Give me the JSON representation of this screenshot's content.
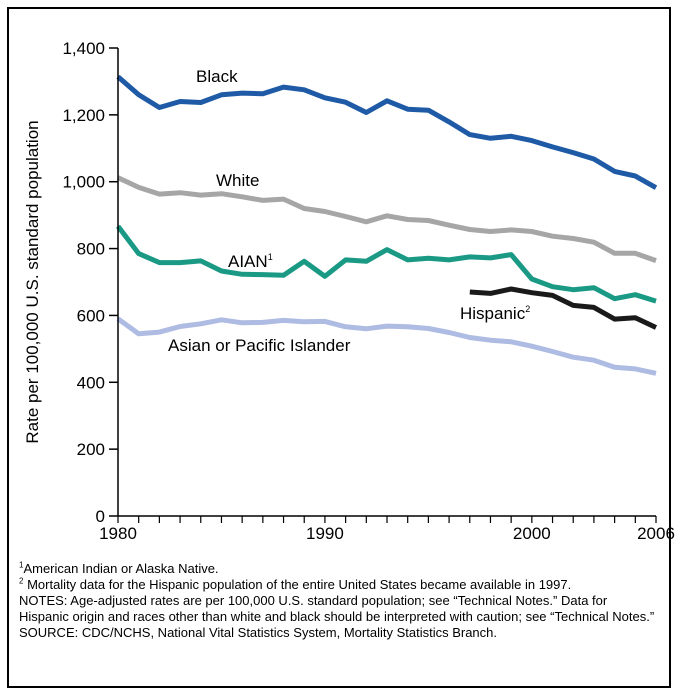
{
  "chart_data": {
    "type": "line",
    "title": "",
    "ylabel": "Rate per 100,000 U.S. standard population",
    "xlabel": "",
    "xlim": [
      1980,
      2006
    ],
    "ylim": [
      0,
      1400
    ],
    "x_ticks": [
      "1980",
      "1990",
      "2000",
      "2006"
    ],
    "y_ticks": [
      "0",
      "200",
      "400",
      "600",
      "800",
      "1,000",
      "1,200",
      "1,400"
    ],
    "grid": false,
    "series": [
      {
        "name": "Black",
        "sup": "",
        "color": "#1f5aa6",
        "x": [
          1980,
          1981,
          1982,
          1983,
          1984,
          1985,
          1986,
          1987,
          1988,
          1989,
          1990,
          1991,
          1992,
          1993,
          1994,
          1995,
          1996,
          1997,
          1998,
          1999,
          2000,
          2001,
          2002,
          2003,
          2004,
          2005,
          2006
        ],
        "y": [
          1314,
          1260,
          1222,
          1240,
          1237,
          1260,
          1265,
          1263,
          1283,
          1275,
          1251,
          1238,
          1207,
          1242,
          1217,
          1214,
          1179,
          1141,
          1130,
          1136,
          1123,
          1104,
          1087,
          1068,
          1031,
          1017,
          982
        ]
      },
      {
        "name": "White",
        "sup": "",
        "color": "#a6a6a6",
        "x": [
          1980,
          1981,
          1982,
          1983,
          1984,
          1985,
          1986,
          1987,
          1988,
          1989,
          1990,
          1991,
          1992,
          1993,
          1994,
          1995,
          1996,
          1997,
          1998,
          1999,
          2000,
          2001,
          2002,
          2003,
          2004,
          2005,
          2006
        ],
        "y": [
          1012,
          983,
          963,
          967,
          960,
          964,
          955,
          944,
          948,
          920,
          911,
          896,
          880,
          898,
          887,
          884,
          870,
          857,
          851,
          856,
          851,
          837,
          830,
          819,
          786,
          786,
          764
        ]
      },
      {
        "name": "AIAN",
        "sup": "1",
        "color": "#1a9985",
        "x": [
          1980,
          1981,
          1982,
          1983,
          1984,
          1985,
          1986,
          1987,
          1988,
          1989,
          1990,
          1991,
          1992,
          1993,
          1994,
          1995,
          1996,
          1997,
          1998,
          1999,
          2000,
          2001,
          2002,
          2003,
          2004,
          2005,
          2006
        ],
        "y": [
          867,
          785,
          758,
          758,
          763,
          733,
          723,
          722,
          720,
          762,
          717,
          766,
          762,
          797,
          766,
          771,
          766,
          775,
          772,
          782,
          709,
          686,
          677,
          683,
          650,
          662,
          643
        ]
      },
      {
        "name": "Hispanic",
        "sup": "2",
        "color": "#1a1a1a",
        "x": [
          1997,
          1998,
          1999,
          2000,
          2001,
          2002,
          2003,
          2004,
          2005,
          2006
        ],
        "y": [
          670,
          666,
          679,
          668,
          660,
          630,
          624,
          589,
          593,
          564
        ]
      },
      {
        "name": "Asian or Pacific Islander",
        "sup": "",
        "color": "#aebbe2",
        "x": [
          1980,
          1981,
          1982,
          1983,
          1984,
          1985,
          1986,
          1987,
          1988,
          1989,
          1990,
          1991,
          1992,
          1993,
          1994,
          1995,
          1996,
          1997,
          1998,
          1999,
          2000,
          2001,
          2002,
          2003,
          2004,
          2005,
          2006
        ],
        "y": [
          590,
          545,
          550,
          567,
          575,
          587,
          578,
          579,
          585,
          581,
          582,
          566,
          560,
          568,
          566,
          561,
          549,
          534,
          526,
          521,
          508,
          492,
          475,
          466,
          445,
          440,
          427
        ]
      }
    ]
  },
  "labels": {
    "black": "Black",
    "white": "White",
    "aian": "AIAN",
    "aian_sup": "1",
    "hispanic": "Hispanic",
    "hispanic_sup": "2",
    "asian": "Asian or Pacific Islander"
  },
  "footnotes": {
    "note1_sup": "1",
    "note1": "American Indian or Alaska Native.",
    "note2_sup": "2",
    "note2": " Mortality data for the Hispanic population of the entire United States became available in 1997.",
    "notes": "NOTES: Age-adjusted rates are per 100,000 U.S. standard population; see “Technical Notes.”  Data for Hispanic origin and races other than white and black should be interpreted with caution; see “Technical Notes.”",
    "source": "SOURCE: CDC/NCHS, National Vital Statistics System, Mortality Statistics Branch."
  }
}
